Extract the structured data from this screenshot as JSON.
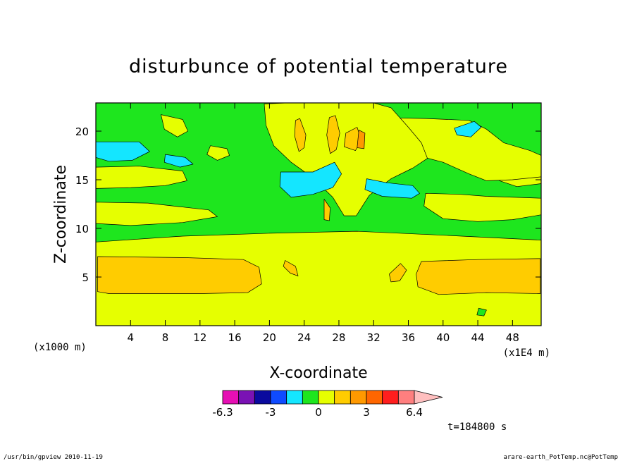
{
  "chart_data": {
    "type": "heatmap",
    "title": "disturbunce of potential temperature",
    "xlabel": "X-coordinate",
    "ylabel": "Z-coordinate",
    "x_unit": "(x1E4 m)",
    "z_unit": "(x1000 m)",
    "x_ticks": [
      4,
      8,
      12,
      16,
      20,
      24,
      28,
      32,
      36,
      40,
      44,
      48
    ],
    "z_ticks": [
      5,
      10,
      15,
      20
    ],
    "xlim": [
      0,
      51.3
    ],
    "zlim": [
      0,
      22.9
    ],
    "colorbar": {
      "tick_labels": [
        "-6.3",
        "-3",
        "0",
        "3",
        "6.4"
      ],
      "tick_levels": [
        -6.3,
        -3,
        0,
        3,
        6.4
      ],
      "levels": [
        -6.3,
        -5.2,
        -4.1,
        -3,
        -1.9,
        -0.8,
        0,
        0.9,
        2,
        3,
        4.1,
        5.2,
        6.4
      ],
      "colors": [
        "#e60fb4",
        "#7a12b4",
        "#0a0a9e",
        "#0f4bff",
        "#14e6ff",
        "#1ee61e",
        "#e6ff00",
        "#ffcc00",
        "#ff9900",
        "#ff6600",
        "#ff1e1e",
        "#ff7f7f",
        "#ffbfbf"
      ]
    },
    "regions": [
      {
        "color": "#1ee61e",
        "note": "background"
      },
      {
        "color": "#e6ff00",
        "points": [
          [
            0,
            0
          ],
          [
            51.3,
            0
          ],
          [
            51.3,
            8.8
          ],
          [
            40,
            9.3
          ],
          [
            30,
            9.7
          ],
          [
            20,
            9.5
          ],
          [
            10,
            9.2
          ],
          [
            0,
            8.6
          ]
        ]
      },
      {
        "color": "#ffcc00",
        "points": [
          [
            0.2,
            7.1
          ],
          [
            10,
            7.0
          ],
          [
            17,
            6.8
          ],
          [
            18.8,
            6.0
          ],
          [
            19.1,
            4.3
          ],
          [
            17.5,
            3.4
          ],
          [
            12,
            3.3
          ],
          [
            6,
            3.3
          ],
          [
            1.5,
            3.3
          ],
          [
            0.2,
            3.5
          ]
        ]
      },
      {
        "color": "#ffcc00",
        "points": [
          [
            37.5,
            6.6
          ],
          [
            44,
            6.8
          ],
          [
            51.2,
            6.9
          ],
          [
            51.2,
            3.3
          ],
          [
            45,
            3.4
          ],
          [
            39.5,
            3.2
          ],
          [
            37.1,
            4.0
          ],
          [
            36.9,
            5.3
          ]
        ]
      },
      {
        "color": "#e6ff00",
        "points": [
          [
            0,
            16.3
          ],
          [
            5,
            16.4
          ],
          [
            10,
            15.9
          ],
          [
            10.5,
            14.9
          ],
          [
            8,
            14.4
          ],
          [
            4,
            14.2
          ],
          [
            0,
            14.1
          ]
        ]
      },
      {
        "color": "#e6ff00",
        "points": [
          [
            0,
            12.7
          ],
          [
            6,
            12.6
          ],
          [
            10,
            12.2
          ],
          [
            13,
            11.9
          ],
          [
            14,
            11.2
          ],
          [
            10,
            10.6
          ],
          [
            4,
            10.3
          ],
          [
            0,
            10.5
          ]
        ]
      },
      {
        "color": "#e6ff00",
        "points": [
          [
            38,
            13.6
          ],
          [
            42,
            13.5
          ],
          [
            45,
            13.3
          ],
          [
            51.3,
            13.1
          ],
          [
            51.3,
            11.4
          ],
          [
            48,
            10.9
          ],
          [
            44,
            10.7
          ],
          [
            40,
            11.0
          ],
          [
            37.8,
            12.3
          ]
        ]
      },
      {
        "color": "#e6ff00",
        "points": [
          [
            47,
            16.3
          ],
          [
            51.3,
            16.0
          ],
          [
            51.3,
            14.6
          ],
          [
            48.5,
            14.3
          ],
          [
            46.5,
            14.9
          ]
        ]
      },
      {
        "color": "#e6ff00",
        "points": [
          [
            7.5,
            21.7
          ],
          [
            10,
            21.2
          ],
          [
            10.6,
            20.0
          ],
          [
            9.4,
            19.4
          ],
          [
            7.9,
            20.2
          ]
        ]
      },
      {
        "color": "#e6ff00",
        "points": [
          [
            13.2,
            18.5
          ],
          [
            15.1,
            18.2
          ],
          [
            15.4,
            17.5
          ],
          [
            14.0,
            17.0
          ],
          [
            12.8,
            17.6
          ]
        ]
      },
      {
        "color": "#e6ff00",
        "points": [
          [
            32,
            21.4
          ],
          [
            38,
            21.3
          ],
          [
            43,
            21.1
          ],
          [
            45,
            20.2
          ],
          [
            47,
            18.8
          ],
          [
            50,
            18.0
          ],
          [
            51.3,
            17.5
          ],
          [
            51.3,
            15.3
          ],
          [
            48,
            15.0
          ],
          [
            45,
            14.9
          ],
          [
            43,
            15.6
          ],
          [
            40,
            16.8
          ],
          [
            37,
            17.5
          ],
          [
            35,
            16.9
          ],
          [
            33,
            16.1
          ]
        ]
      },
      {
        "color": "#e6ff00",
        "points": [
          [
            19.4,
            22.8
          ],
          [
            22,
            22.9
          ],
          [
            27,
            22.9
          ],
          [
            32,
            22.9
          ],
          [
            34,
            22.4
          ],
          [
            36,
            20.4
          ],
          [
            37.5,
            18.8
          ],
          [
            38.2,
            17.2
          ],
          [
            36.5,
            16.2
          ],
          [
            34,
            15.1
          ],
          [
            31.5,
            13.4
          ],
          [
            30,
            11.3
          ],
          [
            28.6,
            11.3
          ],
          [
            27.3,
            13.2
          ],
          [
            25,
            15.2
          ],
          [
            22.5,
            16.8
          ],
          [
            20.5,
            18.5
          ],
          [
            19.6,
            20.6
          ]
        ]
      },
      {
        "color": "#ffcc00",
        "points": [
          [
            27.6,
            21.6
          ],
          [
            28.1,
            19.8
          ],
          [
            27.7,
            18.1
          ],
          [
            27.0,
            17.7
          ],
          [
            26.6,
            19.6
          ],
          [
            26.9,
            21.4
          ]
        ]
      },
      {
        "color": "#ffcc00",
        "points": [
          [
            23.5,
            21.3
          ],
          [
            24.2,
            19.6
          ],
          [
            24.0,
            18.3
          ],
          [
            23.4,
            17.9
          ],
          [
            22.9,
            19.5
          ],
          [
            23.0,
            21.1
          ]
        ]
      },
      {
        "color": "#ffcc00",
        "points": [
          [
            28.8,
            19.8
          ],
          [
            30.1,
            20.4
          ],
          [
            30.6,
            19.0
          ],
          [
            29.9,
            18.0
          ],
          [
            28.6,
            18.4
          ]
        ]
      },
      {
        "color": "#ff9900",
        "points": [
          [
            30.3,
            20.1
          ],
          [
            31.0,
            19.8
          ],
          [
            30.9,
            18.2
          ],
          [
            30.1,
            18.3
          ]
        ]
      },
      {
        "color": "#14e6ff",
        "points": [
          [
            0,
            18.9
          ],
          [
            5,
            18.9
          ],
          [
            6.2,
            17.9
          ],
          [
            4.2,
            17.0
          ],
          [
            1.5,
            16.9
          ],
          [
            0,
            17.3
          ]
        ]
      },
      {
        "color": "#14e6ff",
        "points": [
          [
            21.3,
            15.8
          ],
          [
            25,
            15.8
          ],
          [
            27.5,
            16.8
          ],
          [
            28.3,
            15.6
          ],
          [
            27.3,
            14.2
          ],
          [
            25,
            13.5
          ],
          [
            22.5,
            13.2
          ],
          [
            21.2,
            14.3
          ]
        ]
      },
      {
        "color": "#14e6ff",
        "points": [
          [
            31.2,
            15.1
          ],
          [
            33.5,
            14.7
          ],
          [
            36.5,
            14.4
          ],
          [
            37.3,
            13.6
          ],
          [
            36.4,
            13.1
          ],
          [
            33,
            13.3
          ],
          [
            31.0,
            14.0
          ]
        ]
      },
      {
        "color": "#14e6ff",
        "points": [
          [
            41.3,
            20.3
          ],
          [
            43.6,
            21.0
          ],
          [
            44.4,
            20.4
          ],
          [
            43.2,
            19.4
          ],
          [
            41.6,
            19.6
          ]
        ]
      },
      {
        "color": "#14e6ff",
        "points": [
          [
            8.0,
            17.6
          ],
          [
            10.3,
            17.3
          ],
          [
            11.2,
            16.6
          ],
          [
            9.7,
            16.3
          ],
          [
            7.9,
            16.8
          ]
        ]
      },
      {
        "color": "#ffcc00",
        "points": [
          [
            26.3,
            13.0
          ],
          [
            27.0,
            12.1
          ],
          [
            26.9,
            10.8
          ],
          [
            26.3,
            10.9
          ]
        ]
      },
      {
        "color": "#ffcc00",
        "points": [
          [
            21.8,
            6.7
          ],
          [
            23.0,
            6.1
          ],
          [
            23.3,
            5.1
          ],
          [
            22.4,
            5.4
          ],
          [
            21.6,
            6.1
          ]
        ]
      },
      {
        "color": "#ffcc00",
        "points": [
          [
            33.8,
            5.3
          ],
          [
            35.1,
            6.4
          ],
          [
            35.8,
            5.7
          ],
          [
            35.0,
            4.6
          ],
          [
            34.0,
            4.5
          ]
        ]
      },
      {
        "color": "#1ee61e",
        "points": [
          [
            44.1,
            1.8
          ],
          [
            45.0,
            1.6
          ],
          [
            44.7,
            1.0
          ],
          [
            43.9,
            1.1
          ]
        ]
      }
    ]
  },
  "time_label": "t=184800 s",
  "footer": {
    "left": "/usr/bin/gpview   2010-11-19",
    "right": "arare-earth_PotTemp.nc@PotTemp"
  }
}
